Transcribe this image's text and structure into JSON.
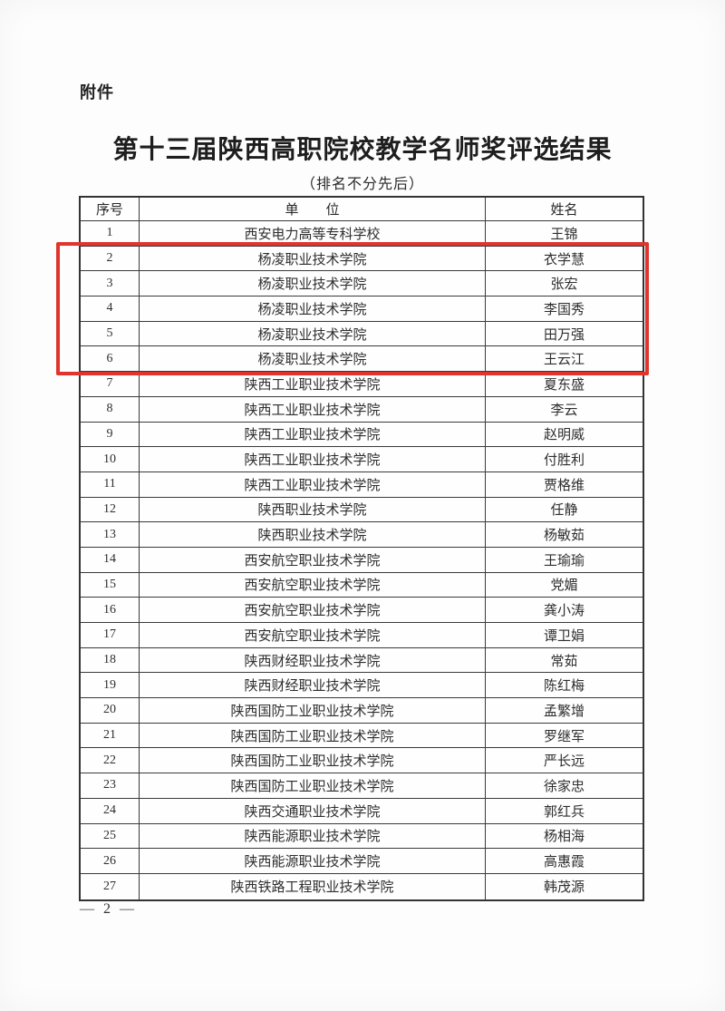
{
  "page": {
    "attachment_label": "附件",
    "title": "第十三届陕西高职院校教学名师奖评选结果",
    "subtitle": "（排名不分先后）",
    "page_number": "— 2 —"
  },
  "table": {
    "headers": {
      "no": "序号",
      "org": "单　　位",
      "name": "姓名"
    },
    "rows": [
      {
        "no": "1",
        "org": "西安电力高等专科学校",
        "name": "王锦"
      },
      {
        "no": "2",
        "org": "杨凌职业技术学院",
        "name": "衣学慧"
      },
      {
        "no": "3",
        "org": "杨凌职业技术学院",
        "name": "张宏"
      },
      {
        "no": "4",
        "org": "杨凌职业技术学院",
        "name": "李国秀"
      },
      {
        "no": "5",
        "org": "杨凌职业技术学院",
        "name": "田万强"
      },
      {
        "no": "6",
        "org": "杨凌职业技术学院",
        "name": "王云江"
      },
      {
        "no": "7",
        "org": "陕西工业职业技术学院",
        "name": "夏东盛"
      },
      {
        "no": "8",
        "org": "陕西工业职业技术学院",
        "name": "李云"
      },
      {
        "no": "9",
        "org": "陕西工业职业技术学院",
        "name": "赵明威"
      },
      {
        "no": "10",
        "org": "陕西工业职业技术学院",
        "name": "付胜利"
      },
      {
        "no": "11",
        "org": "陕西工业职业技术学院",
        "name": "贾格维"
      },
      {
        "no": "12",
        "org": "陕西职业技术学院",
        "name": "任静"
      },
      {
        "no": "13",
        "org": "陕西职业技术学院",
        "name": "杨敏茹"
      },
      {
        "no": "14",
        "org": "西安航空职业技术学院",
        "name": "王瑜瑜"
      },
      {
        "no": "15",
        "org": "西安航空职业技术学院",
        "name": "党媚"
      },
      {
        "no": "16",
        "org": "西安航空职业技术学院",
        "name": "龚小涛"
      },
      {
        "no": "17",
        "org": "西安航空职业技术学院",
        "name": "谭卫娟"
      },
      {
        "no": "18",
        "org": "陕西财经职业技术学院",
        "name": "常茹"
      },
      {
        "no": "19",
        "org": "陕西财经职业技术学院",
        "name": "陈红梅"
      },
      {
        "no": "20",
        "org": "陕西国防工业职业技术学院",
        "name": "孟繁增"
      },
      {
        "no": "21",
        "org": "陕西国防工业职业技术学院",
        "name": "罗继军"
      },
      {
        "no": "22",
        "org": "陕西国防工业职业技术学院",
        "name": "严长远"
      },
      {
        "no": "23",
        "org": "陕西国防工业职业技术学院",
        "name": "徐家忠"
      },
      {
        "no": "24",
        "org": "陕西交通职业技术学院",
        "name": "郭红兵"
      },
      {
        "no": "25",
        "org": "陕西能源职业技术学院",
        "name": "杨相海"
      },
      {
        "no": "26",
        "org": "陕西能源职业技术学院",
        "name": "高惠霞"
      },
      {
        "no": "27",
        "org": "陕西铁路工程职业技术学院",
        "name": "韩茂源"
      }
    ]
  },
  "highlight": {
    "color": "#e0342c",
    "rows_covered": [
      "2",
      "3",
      "4",
      "5",
      "6"
    ]
  },
  "colors": {
    "table_border": "#3a3a3a",
    "text": "#2e2e2e",
    "page_background": "#fdfdfd"
  }
}
